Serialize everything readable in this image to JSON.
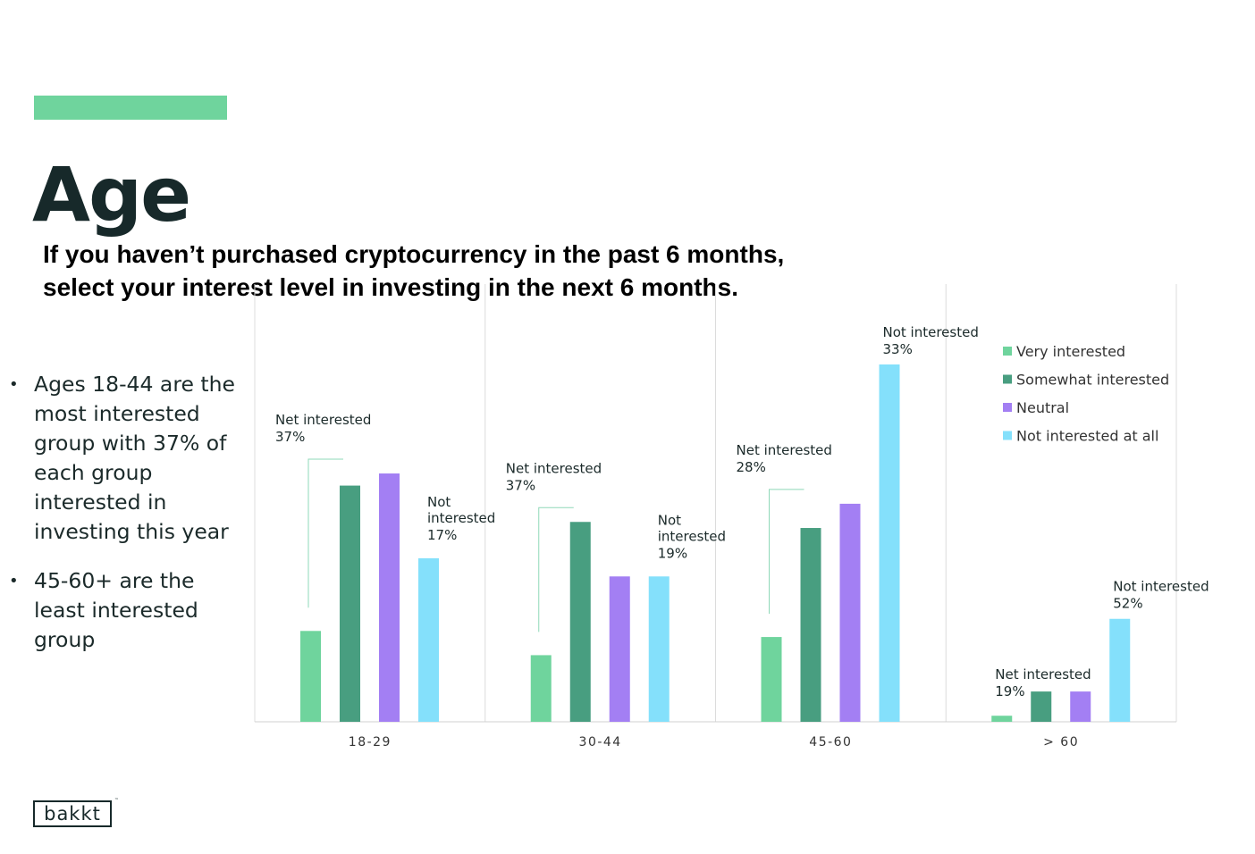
{
  "header": {
    "title": "Age",
    "subtitle_line1": "If you haven’t purchased cryptocurrency in the past 6 months,",
    "subtitle_line2": "select your interest level in investing in the next 6 months."
  },
  "bullets": [
    "Ages 18-44 are the most interested group with 37% of each group interested in investing this year",
    "45-60+ are the least interested group"
  ],
  "bullet_symbol": "•",
  "logo": {
    "text": "bakkt",
    "mark": "™"
  },
  "colors": {
    "accent": "#6fd49d",
    "very_interested": "#6fd49d",
    "somewhat_interested": "#489e80",
    "neutral": "#a37ff3",
    "not_interested_at_all": "#84e0fb"
  },
  "chart_data": {
    "type": "bar",
    "categories": [
      "18-29",
      "30-44",
      "45-60",
      "> 60"
    ],
    "series": [
      {
        "name": "Very interested",
        "values": [
          15,
          11,
          14,
          1
        ]
      },
      {
        "name": "Somewhat interested",
        "values": [
          39,
          33,
          32,
          5
        ]
      },
      {
        "name": "Neutral",
        "values": [
          41,
          24,
          36,
          5
        ]
      },
      {
        "name": "Not interested at all",
        "values": [
          27,
          24,
          59,
          17
        ]
      }
    ],
    "annotations": [
      {
        "category": "18-29",
        "net_label": "Net interested",
        "net_value": "37%",
        "not_label": "Not interested",
        "not_value": "17%"
      },
      {
        "category": "30-44",
        "net_label": "Net interested",
        "net_value": "37%",
        "not_label": "Not interested",
        "not_value": "19%"
      },
      {
        "category": "45-60",
        "net_label": "Net interested",
        "net_value": "28%",
        "not_label": "Not interested",
        "not_value": "33%"
      },
      {
        "category": "> 60",
        "net_label": "Net interested",
        "net_value": "19%",
        "not_label": "Not interested",
        "not_value": "52%"
      }
    ],
    "legend_position": "top-right",
    "grid": false
  }
}
